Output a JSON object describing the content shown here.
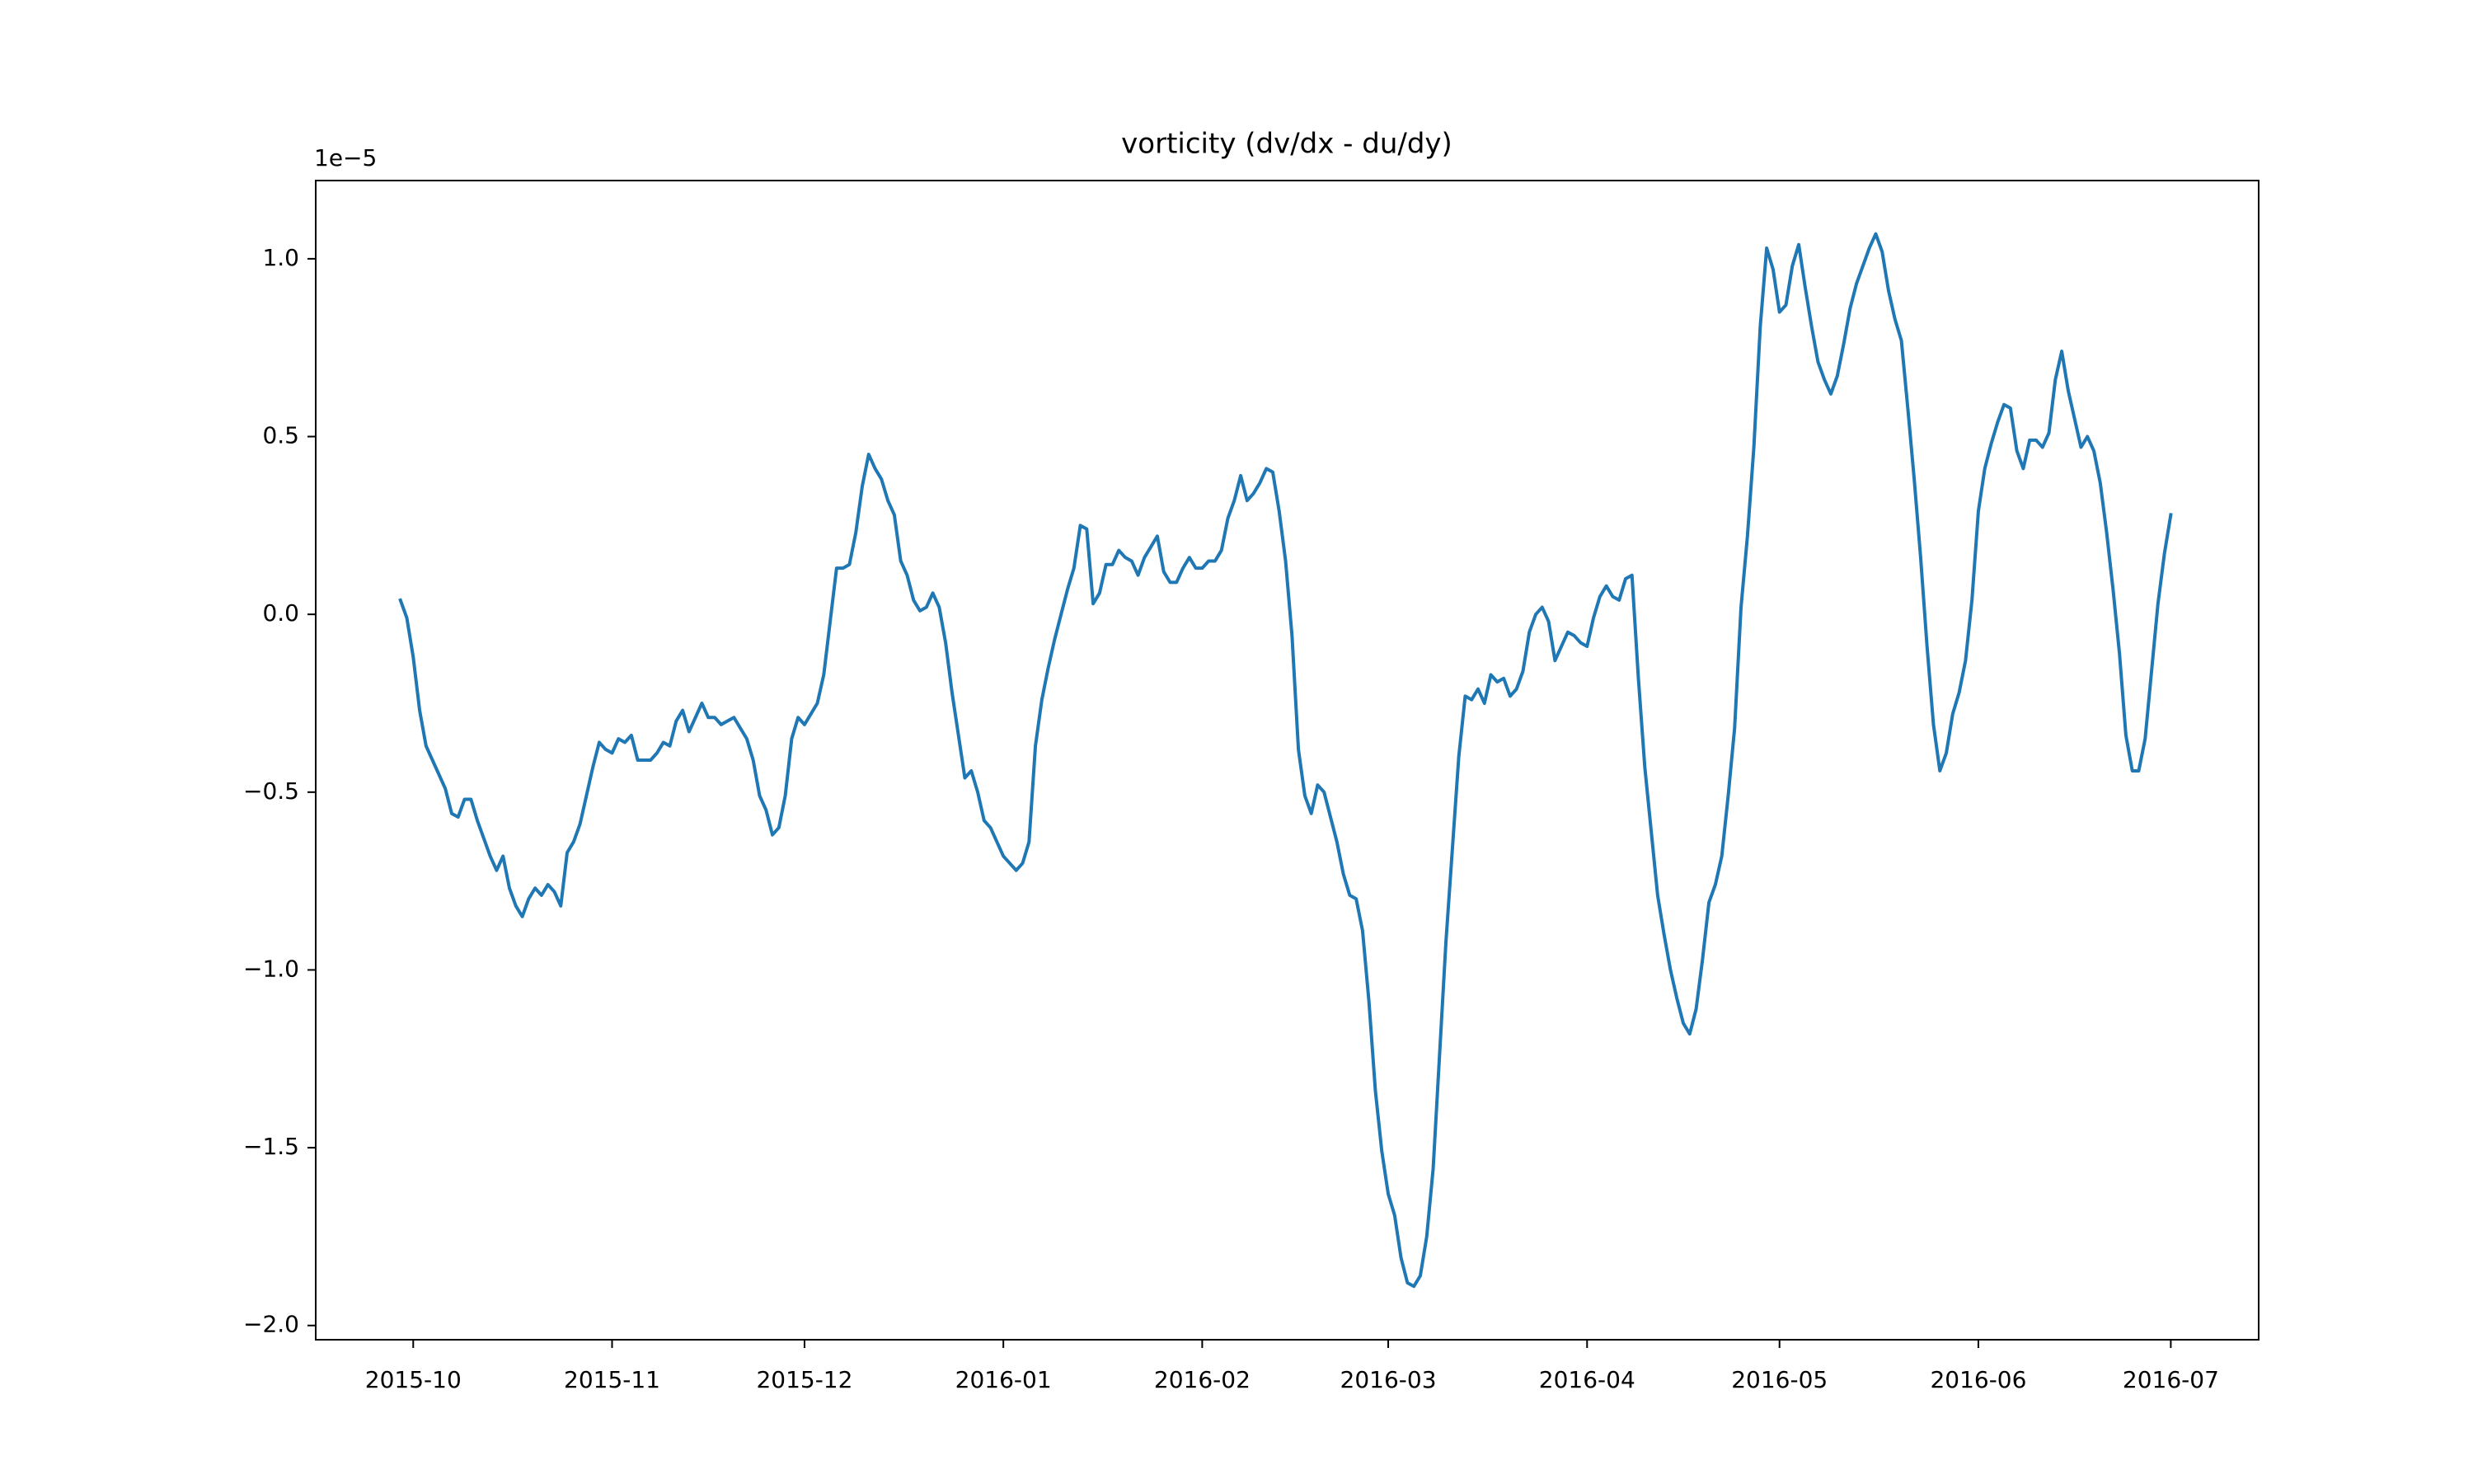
{
  "chart_data": {
    "type": "line",
    "title": "vorticity (dv/dx - du/dy)",
    "y_scale_label": "1e−5",
    "color": "#1f77b4",
    "x": [
      -2,
      -1,
      0,
      1,
      2,
      3,
      4,
      5,
      6,
      7,
      8,
      9,
      10,
      11,
      12,
      13,
      14,
      15,
      16,
      17,
      18,
      19,
      20,
      21,
      22,
      23,
      24,
      25,
      26,
      27,
      28,
      29,
      30,
      31,
      32,
      33,
      34,
      35,
      36,
      37,
      38,
      39,
      40,
      41,
      42,
      43,
      44,
      45,
      46,
      47,
      48,
      49,
      50,
      51,
      52,
      53,
      54,
      55,
      56,
      57,
      58,
      59,
      60,
      61,
      62,
      63,
      64,
      65,
      66,
      67,
      68,
      69,
      70,
      71,
      72,
      73,
      74,
      75,
      76,
      77,
      78,
      79,
      80,
      81,
      82,
      83,
      84,
      85,
      86,
      87,
      88,
      89,
      90,
      91,
      92,
      93,
      94,
      95,
      96,
      97,
      98,
      99,
      100,
      101,
      102,
      103,
      104,
      105,
      106,
      107,
      108,
      109,
      110,
      111,
      112,
      113,
      114,
      115,
      116,
      117,
      118,
      119,
      120,
      121,
      122,
      123,
      124,
      125,
      126,
      127,
      128,
      129,
      130,
      131,
      132,
      133,
      134,
      135,
      136,
      137,
      138,
      139,
      140,
      141,
      142,
      143,
      144,
      145,
      146,
      147,
      148,
      149,
      150,
      151,
      152,
      153,
      154,
      155,
      156,
      157,
      158,
      159,
      160,
      161,
      162,
      163,
      164,
      165,
      166,
      167,
      168,
      169,
      170,
      171,
      172,
      173,
      174,
      175,
      176,
      177,
      178,
      179,
      180,
      181,
      182,
      183,
      184,
      185,
      186,
      187,
      188,
      189,
      190,
      191,
      192,
      193,
      194,
      195,
      196,
      197,
      198,
      199,
      200,
      201,
      202,
      203,
      204,
      205,
      206,
      207,
      208,
      209,
      210,
      211,
      212,
      213,
      214,
      215,
      216,
      217,
      218,
      219,
      220,
      221,
      222,
      223,
      224,
      225,
      226,
      227,
      228,
      229,
      230,
      231,
      232,
      233,
      234,
      235,
      236,
      237,
      238,
      239,
      240,
      241,
      242,
      243,
      244,
      245,
      246,
      247,
      248,
      249,
      250,
      251,
      252,
      253,
      254,
      255,
      256,
      257,
      258,
      259,
      260,
      261,
      262,
      263,
      264,
      265,
      266,
      267,
      268,
      269,
      270,
      271,
      272,
      273,
      274
    ],
    "values": [
      0.04,
      -0.01,
      -0.12,
      -0.27,
      -0.37,
      -0.41,
      -0.45,
      -0.49,
      -0.56,
      -0.57,
      -0.52,
      -0.52,
      -0.58,
      -0.63,
      -0.68,
      -0.72,
      -0.68,
      -0.77,
      -0.82,
      -0.85,
      -0.8,
      -0.77,
      -0.79,
      -0.76,
      -0.78,
      -0.82,
      -0.67,
      -0.64,
      -0.59,
      -0.51,
      -0.43,
      -0.36,
      -0.38,
      -0.39,
      -0.35,
      -0.36,
      -0.34,
      -0.41,
      -0.41,
      -0.41,
      -0.39,
      -0.36,
      -0.37,
      -0.3,
      -0.27,
      -0.33,
      -0.29,
      -0.25,
      -0.29,
      -0.29,
      -0.31,
      -0.3,
      -0.29,
      -0.32,
      -0.35,
      -0.41,
      -0.51,
      -0.55,
      -0.62,
      -0.6,
      -0.51,
      -0.35,
      -0.29,
      -0.31,
      -0.28,
      -0.25,
      -0.17,
      -0.02,
      0.13,
      0.13,
      0.14,
      0.23,
      0.36,
      0.45,
      0.41,
      0.38,
      0.32,
      0.28,
      0.15,
      0.11,
      0.04,
      0.01,
      0.02,
      0.06,
      0.02,
      -0.08,
      -0.22,
      -0.34,
      -0.46,
      -0.44,
      -0.5,
      -0.58,
      -0.6,
      -0.64,
      -0.68,
      -0.7,
      -0.72,
      -0.7,
      -0.64,
      -0.37,
      -0.24,
      -0.15,
      -0.07,
      0.0,
      0.07,
      0.13,
      0.25,
      0.24,
      0.03,
      0.06,
      0.14,
      0.14,
      0.18,
      0.16,
      0.15,
      0.11,
      0.16,
      0.19,
      0.22,
      0.12,
      0.09,
      0.09,
      0.13,
      0.16,
      0.13,
      0.13,
      0.15,
      0.15,
      0.18,
      0.27,
      0.32,
      0.39,
      0.32,
      0.34,
      0.37,
      0.41,
      0.4,
      0.29,
      0.15,
      -0.06,
      -0.38,
      -0.51,
      -0.56,
      -0.48,
      -0.5,
      -0.57,
      -0.64,
      -0.73,
      -0.79,
      -0.8,
      -0.89,
      -1.09,
      -1.34,
      -1.51,
      -1.63,
      -1.69,
      -1.81,
      -1.88,
      -1.89,
      -1.86,
      -1.75,
      -1.56,
      -1.24,
      -0.92,
      -0.66,
      -0.4,
      -0.23,
      -0.24,
      -0.21,
      -0.25,
      -0.17,
      -0.19,
      -0.18,
      -0.23,
      -0.21,
      -0.16,
      -0.05,
      0.0,
      0.02,
      -0.02,
      -0.13,
      -0.09,
      -0.05,
      -0.06,
      -0.08,
      -0.09,
      -0.01,
      0.05,
      0.08,
      0.05,
      0.04,
      0.1,
      0.11,
      -0.18,
      -0.43,
      -0.61,
      -0.79,
      -0.9,
      -1.0,
      -1.08,
      -1.15,
      -1.18,
      -1.11,
      -0.97,
      -0.81,
      -0.76,
      -0.68,
      -0.51,
      -0.32,
      0.02,
      0.22,
      0.47,
      0.81,
      1.03,
      0.97,
      0.85,
      0.87,
      0.98,
      1.04,
      0.92,
      0.81,
      0.71,
      0.66,
      0.62,
      0.67,
      0.76,
      0.86,
      0.93,
      0.98,
      1.03,
      1.07,
      1.02,
      0.91,
      0.83,
      0.77,
      0.58,
      0.38,
      0.16,
      -0.09,
      -0.31,
      -0.44,
      -0.39,
      -0.28,
      -0.22,
      -0.13,
      0.04,
      0.29,
      0.41,
      0.48,
      0.54,
      0.59,
      0.58,
      0.46,
      0.41,
      0.49,
      0.49,
      0.47,
      0.51,
      0.66,
      0.74,
      0.63,
      0.55,
      0.47,
      0.5,
      0.46,
      0.37,
      0.23,
      0.07,
      -0.11,
      -0.34,
      -0.44,
      -0.44,
      -0.35,
      -0.16,
      0.03,
      0.17,
      0.28
    ],
    "xlim": [
      -15.2,
      287.7
    ],
    "ylim": [
      -2.04,
      1.22
    ],
    "xticks": [
      {
        "value": 0,
        "label": "2015-10"
      },
      {
        "value": 31,
        "label": "2015-11"
      },
      {
        "value": 61,
        "label": "2015-12"
      },
      {
        "value": 92,
        "label": "2016-01"
      },
      {
        "value": 123,
        "label": "2016-02"
      },
      {
        "value": 152,
        "label": "2016-03"
      },
      {
        "value": 183,
        "label": "2016-04"
      },
      {
        "value": 213,
        "label": "2016-05"
      },
      {
        "value": 244,
        "label": "2016-06"
      },
      {
        "value": 274,
        "label": "2016-07"
      }
    ],
    "yticks": [
      {
        "value": -2,
        "label": "−2.0"
      },
      {
        "value": -1.5,
        "label": "−1.5"
      },
      {
        "value": -1,
        "label": "−1.0"
      },
      {
        "value": -0.5,
        "label": "−0.5"
      },
      {
        "value": 0,
        "label": "0.0"
      },
      {
        "value": 0.5,
        "label": "0.5"
      },
      {
        "value": 1,
        "label": "1.0"
      }
    ],
    "grid": false
  }
}
